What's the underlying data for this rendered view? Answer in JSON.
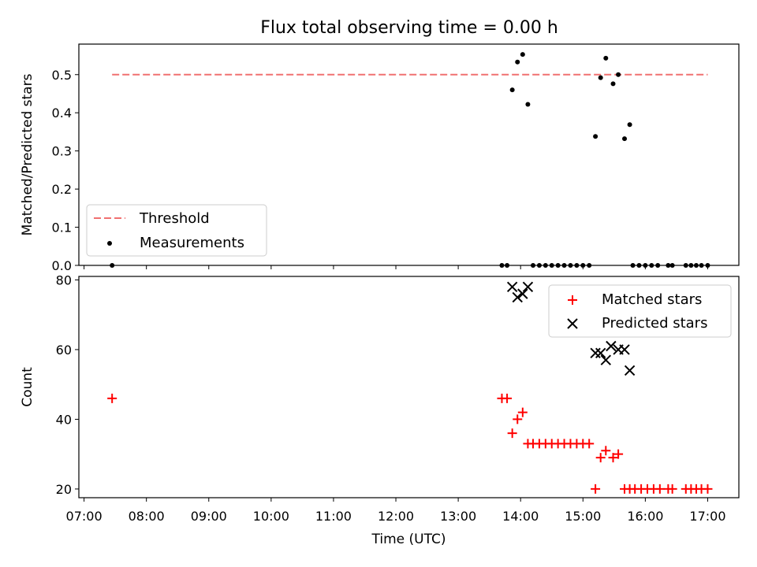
{
  "figure_title": "Flux total observing time = 0.00 h",
  "colors": {
    "threshold": "#f07070",
    "measurements": "#000000",
    "matched": "#ff0000",
    "predicted": "#000000"
  },
  "chart_data": [
    {
      "type": "scatter",
      "title": "Flux total observing time = 0.00 h",
      "xlabel": "",
      "ylabel": "Matched/Predicted stars",
      "xlim": [
        "06:55",
        "17:30"
      ],
      "ylim": [
        0,
        0.58
      ],
      "yticks": [
        0.0,
        0.1,
        0.2,
        0.3,
        0.4,
        0.5
      ],
      "ytick_labels": [
        "0.0",
        "0.1",
        "0.2",
        "0.3",
        "0.4",
        "0.5"
      ],
      "legend_position": "lower-left",
      "threshold": {
        "name": "Threshold",
        "style": "dashed line",
        "value": 0.5,
        "x_range": [
          "07:27",
          "17:00"
        ]
      },
      "series": [
        {
          "name": "Measurements",
          "marker": "dot",
          "points": [
            [
              "07:27",
              0.0
            ],
            [
              "13:42",
              0.0
            ],
            [
              "13:47",
              0.0
            ],
            [
              "13:52",
              0.46
            ],
            [
              "13:57",
              0.533
            ],
            [
              "14:02",
              0.553
            ],
            [
              "14:07",
              0.422
            ],
            [
              "14:12",
              0.0
            ],
            [
              "14:18",
              0.0
            ],
            [
              "14:24",
              0.0
            ],
            [
              "14:30",
              0.0
            ],
            [
              "14:36",
              0.0
            ],
            [
              "14:42",
              0.0
            ],
            [
              "14:48",
              0.0
            ],
            [
              "14:54",
              0.0
            ],
            [
              "15:00",
              0.0
            ],
            [
              "15:06",
              0.0
            ],
            [
              "15:12",
              0.338
            ],
            [
              "15:17",
              0.492
            ],
            [
              "15:22",
              0.543
            ],
            [
              "15:29",
              0.476
            ],
            [
              "15:34",
              0.5
            ],
            [
              "15:40",
              0.332
            ],
            [
              "15:45",
              0.369
            ],
            [
              "15:48",
              0.0
            ],
            [
              "15:54",
              0.0
            ],
            [
              "16:00",
              0.0
            ],
            [
              "16:06",
              0.0
            ],
            [
              "16:12",
              0.0
            ],
            [
              "16:22",
              0.0
            ],
            [
              "16:26",
              0.0
            ],
            [
              "16:39",
              0.0
            ],
            [
              "16:44",
              0.0
            ],
            [
              "16:49",
              0.0
            ],
            [
              "16:54",
              0.0
            ],
            [
              "17:00",
              0.0
            ]
          ]
        }
      ]
    },
    {
      "type": "scatter",
      "title": "",
      "xlabel": "Time (UTC)",
      "ylabel": "Count",
      "xlim": [
        "06:55",
        "17:30"
      ],
      "ylim": [
        17.5,
        81
      ],
      "xticks": [
        "07:00",
        "08:00",
        "09:00",
        "10:00",
        "11:00",
        "12:00",
        "13:00",
        "14:00",
        "15:00",
        "16:00",
        "17:00"
      ],
      "yticks": [
        20,
        40,
        60,
        80
      ],
      "ytick_labels": [
        "20",
        "40",
        "60",
        "80"
      ],
      "legend_position": "upper-right",
      "series": [
        {
          "name": "Matched stars",
          "marker": "plus",
          "points": [
            [
              "07:27",
              46
            ],
            [
              "13:42",
              46
            ],
            [
              "13:47",
              46
            ],
            [
              "13:52",
              36
            ],
            [
              "13:57",
              40
            ],
            [
              "14:02",
              42
            ],
            [
              "14:07",
              33
            ],
            [
              "14:12",
              33
            ],
            [
              "14:18",
              33
            ],
            [
              "14:24",
              33
            ],
            [
              "14:30",
              33
            ],
            [
              "14:36",
              33
            ],
            [
              "14:42",
              33
            ],
            [
              "14:48",
              33
            ],
            [
              "14:54",
              33
            ],
            [
              "15:00",
              33
            ],
            [
              "15:06",
              33
            ],
            [
              "15:12",
              20
            ],
            [
              "15:17",
              29
            ],
            [
              "15:22",
              31
            ],
            [
              "15:29",
              29
            ],
            [
              "15:34",
              30
            ],
            [
              "15:40",
              20
            ],
            [
              "15:45",
              20
            ],
            [
              "15:50",
              20
            ],
            [
              "15:56",
              20
            ],
            [
              "16:02",
              20
            ],
            [
              "16:08",
              20
            ],
            [
              "16:14",
              20
            ],
            [
              "16:22",
              20
            ],
            [
              "16:26",
              20
            ],
            [
              "16:39",
              20
            ],
            [
              "16:44",
              20
            ],
            [
              "16:49",
              20
            ],
            [
              "16:54",
              20
            ],
            [
              "17:00",
              20
            ]
          ]
        },
        {
          "name": "Predicted stars",
          "marker": "x",
          "points": [
            [
              "13:52",
              78
            ],
            [
              "13:57",
              75
            ],
            [
              "14:02",
              76
            ],
            [
              "14:07",
              78
            ],
            [
              "15:12",
              59
            ],
            [
              "15:17",
              59
            ],
            [
              "15:22",
              57
            ],
            [
              "15:27",
              61
            ],
            [
              "15:34",
              60
            ],
            [
              "15:40",
              60
            ],
            [
              "15:45",
              54
            ]
          ]
        }
      ]
    }
  ]
}
